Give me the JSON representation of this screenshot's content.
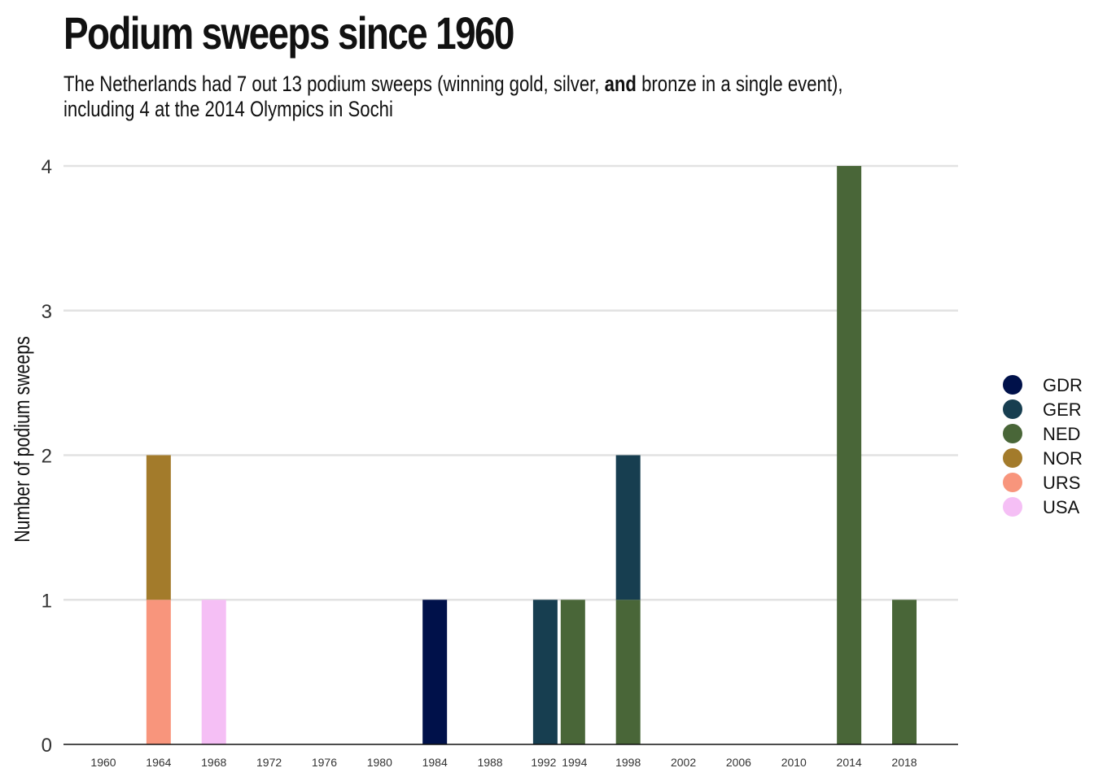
{
  "header": {
    "title": "Podium sweeps since 1960",
    "subtitle_part1": "The Netherlands had 7 out 13 podium sweeps (winning gold, silver, ",
    "subtitle_bold": "and",
    "subtitle_part2": " bronze in a single event), including 4 at the 2014 Olympics in Sochi"
  },
  "chart_data": {
    "type": "bar",
    "stacked": true,
    "title": "Podium sweeps since 1960",
    "subtitle": "The Netherlands had 7 out 13 podium sweeps (winning gold, silver, and bronze in a single event), including 4 at the 2014 Olympics in Sochi",
    "xlabel": "",
    "ylabel": "Number of podium sweeps",
    "x_ticks": [
      "1960",
      "1964",
      "1968",
      "1972",
      "1976",
      "1980",
      "1984",
      "1988",
      "1992",
      "1994",
      "1998",
      "2002",
      "2006",
      "2010",
      "2014",
      "2018"
    ],
    "y_ticks": [
      0,
      1,
      2,
      3,
      4
    ],
    "ylim": [
      0,
      4
    ],
    "grid": "horizontal",
    "legend_position": "right",
    "series": [
      {
        "name": "GDR",
        "color": "#00114a",
        "points": [
          {
            "x": "1984",
            "y": 1
          }
        ]
      },
      {
        "name": "GER",
        "color": "#173e50",
        "points": [
          {
            "x": "1992",
            "y": 1
          },
          {
            "x": "1998",
            "y": 1
          }
        ]
      },
      {
        "name": "NED",
        "color": "#496638",
        "points": [
          {
            "x": "1994",
            "y": 1
          },
          {
            "x": "1998",
            "y": 1
          },
          {
            "x": "2014",
            "y": 4
          },
          {
            "x": "2018",
            "y": 1
          }
        ]
      },
      {
        "name": "NOR",
        "color": "#a37b2b",
        "points": [
          {
            "x": "1964",
            "y": 1
          }
        ]
      },
      {
        "name": "URS",
        "color": "#f8957c",
        "points": [
          {
            "x": "1964",
            "y": 1
          }
        ]
      },
      {
        "name": "USA",
        "color": "#f5bff5",
        "points": [
          {
            "x": "1968",
            "y": 1
          }
        ]
      }
    ]
  }
}
